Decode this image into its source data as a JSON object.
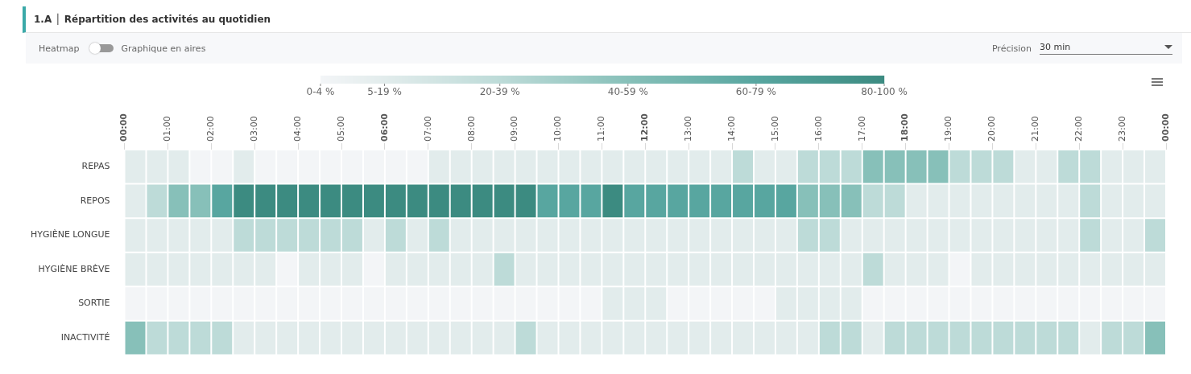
{
  "chart_data": {
    "type": "heatmap",
    "title": "1.A │ Répartition des activités au quotidien",
    "annotations": [
      "Heatmap",
      "Graphique en aires",
      "Précision",
      "30 min"
    ],
    "clim": [
      2,
      90
    ],
    "xlim": [
      0,
      24
    ],
    "xticks": [
      {
        "value": 0,
        "label": "00:00"
      },
      {
        "value": 1,
        "label": "01:00"
      },
      {
        "value": 2,
        "label": "02:00"
      },
      {
        "value": 3,
        "label": "03:00"
      },
      {
        "value": 4,
        "label": "04:00"
      },
      {
        "value": 5,
        "label": "05:00"
      },
      {
        "value": 6,
        "label": "06:00"
      },
      {
        "value": 7,
        "label": "07:00"
      },
      {
        "value": 8,
        "label": "08:00"
      },
      {
        "value": 9,
        "label": "09:00"
      },
      {
        "value": 10,
        "label": "10:00"
      },
      {
        "value": 11,
        "label": "11:00"
      },
      {
        "value": 12,
        "label": "12:00"
      },
      {
        "value": 13,
        "label": "13:00"
      },
      {
        "value": 14,
        "label": "14:00"
      },
      {
        "value": 15,
        "label": "15:00"
      },
      {
        "value": 16,
        "label": "16:00"
      },
      {
        "value": 17,
        "label": "17:00"
      },
      {
        "value": 18,
        "label": "18:00"
      },
      {
        "value": 19,
        "label": "19:00"
      },
      {
        "value": 20,
        "label": "20:00"
      },
      {
        "value": 21,
        "label": "21:00"
      },
      {
        "value": 22,
        "label": "22:00"
      },
      {
        "value": 23,
        "label": "23:00"
      },
      {
        "value": 24,
        "label": "00:00"
      }
    ],
    "y_categories": [
      "REPAS",
      "REPOS",
      "HYGIÈNE LONGUE",
      "HYGIÈNE BRÈVE",
      "SORTIE",
      "INACTIVITÉ"
    ],
    "cticks": [
      {
        "value": 2,
        "label": "0-4 %"
      },
      {
        "value": 12,
        "label": "5-19 %"
      },
      {
        "value": 30,
        "label": "20-39 %"
      },
      {
        "value": 50,
        "label": "40-59 %"
      },
      {
        "value": 70,
        "label": "60-79 %"
      },
      {
        "value": 90,
        "label": "80-100 %"
      }
    ],
    "colors": [
      "#f3f5f7",
      "#e2ecec",
      "#bddbd8",
      "#87c0b9",
      "#58a6a0",
      "#3c8b81"
    ],
    "cells": [
      [
        12,
        12,
        12,
        2,
        2,
        12,
        2,
        2,
        2,
        2,
        2,
        2,
        2,
        2,
        12,
        12,
        12,
        12,
        12,
        12,
        12,
        12,
        12,
        12,
        12,
        12,
        12,
        12,
        30,
        12,
        12,
        30,
        30,
        30,
        50,
        50,
        50,
        50,
        30,
        30,
        30,
        12,
        12,
        30,
        30,
        12,
        12,
        12
      ],
      [
        12,
        30,
        50,
        50,
        70,
        90,
        90,
        90,
        90,
        90,
        90,
        90,
        90,
        90,
        90,
        90,
        90,
        90,
        90,
        70,
        70,
        70,
        90,
        70,
        70,
        70,
        70,
        70,
        70,
        70,
        70,
        50,
        50,
        50,
        30,
        30,
        12,
        12,
        12,
        12,
        12,
        12,
        12,
        12,
        30,
        12,
        12,
        12
      ],
      [
        12,
        12,
        12,
        12,
        12,
        30,
        30,
        30,
        30,
        30,
        30,
        12,
        30,
        12,
        30,
        12,
        12,
        12,
        12,
        12,
        12,
        12,
        12,
        12,
        12,
        12,
        12,
        12,
        12,
        12,
        12,
        30,
        30,
        12,
        12,
        12,
        12,
        12,
        12,
        12,
        12,
        12,
        12,
        12,
        30,
        12,
        12,
        30
      ],
      [
        12,
        12,
        12,
        12,
        12,
        12,
        12,
        2,
        12,
        12,
        12,
        2,
        12,
        12,
        12,
        12,
        12,
        30,
        12,
        12,
        12,
        12,
        12,
        12,
        12,
        12,
        12,
        12,
        12,
        12,
        12,
        12,
        12,
        12,
        30,
        12,
        12,
        12,
        2,
        12,
        12,
        12,
        12,
        12,
        12,
        12,
        12,
        12
      ],
      [
        2,
        2,
        2,
        2,
        2,
        2,
        2,
        2,
        2,
        2,
        2,
        2,
        2,
        2,
        2,
        2,
        2,
        2,
        2,
        2,
        2,
        2,
        12,
        12,
        12,
        2,
        2,
        2,
        2,
        2,
        12,
        12,
        12,
        12,
        2,
        2,
        2,
        2,
        2,
        2,
        2,
        2,
        2,
        2,
        2,
        2,
        2,
        2
      ],
      [
        50,
        30,
        30,
        30,
        30,
        12,
        12,
        12,
        12,
        12,
        12,
        12,
        12,
        12,
        12,
        12,
        12,
        12,
        30,
        12,
        12,
        12,
        12,
        12,
        12,
        12,
        12,
        12,
        12,
        12,
        12,
        12,
        30,
        30,
        12,
        30,
        30,
        30,
        30,
        30,
        30,
        30,
        30,
        30,
        12,
        30,
        30,
        50
      ]
    ]
  }
}
